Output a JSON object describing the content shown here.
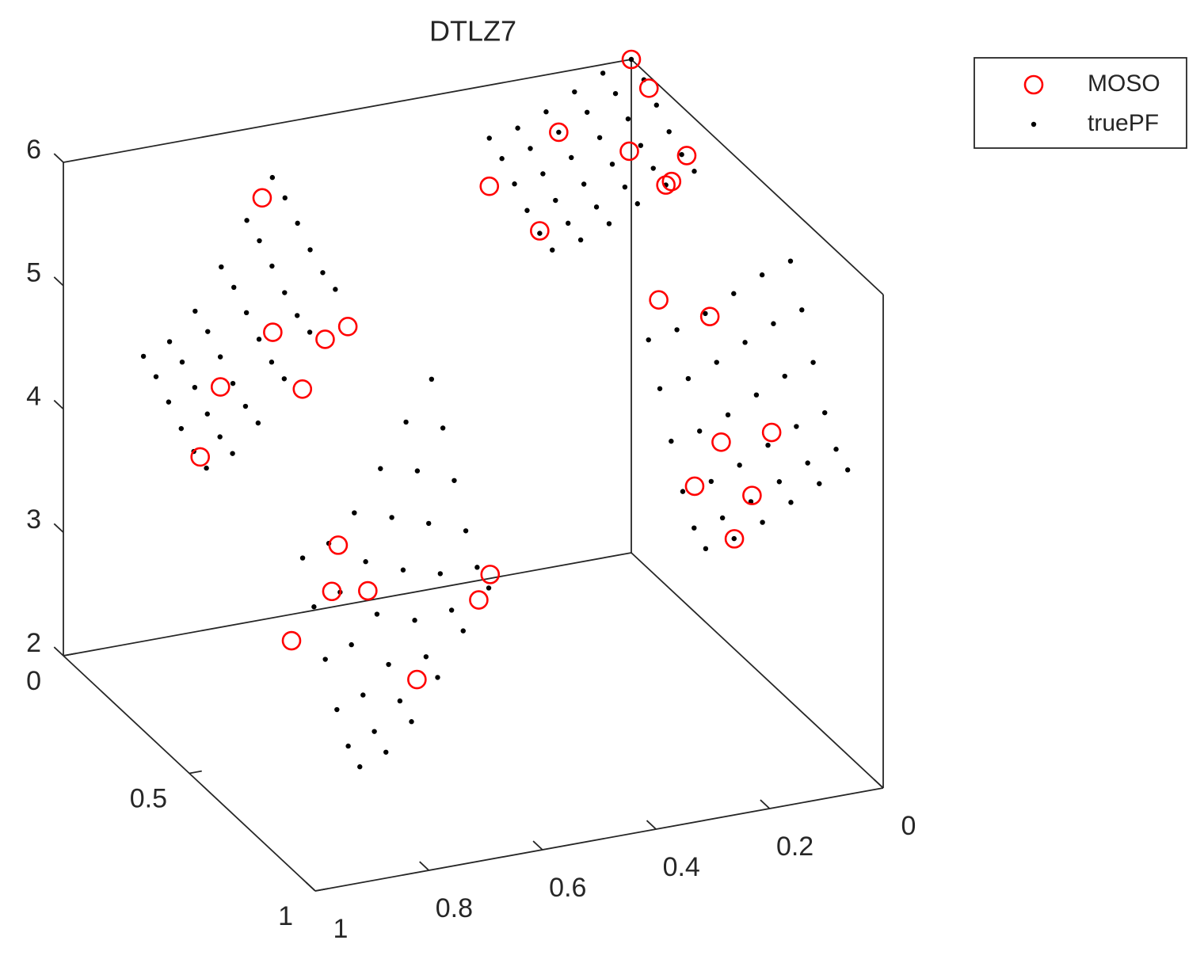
{
  "chart_data": {
    "type": "scatter3d",
    "title": "DTLZ7",
    "xlim": [
      0,
      1
    ],
    "ylim": [
      0,
      1
    ],
    "zlim": [
      2,
      6
    ],
    "xticks": [
      0,
      0.2,
      0.4,
      0.6,
      0.8,
      1
    ],
    "yticks": [
      0,
      0.5,
      1
    ],
    "zticks": [
      2,
      3,
      4,
      5,
      6
    ],
    "legend": "northeastoutside",
    "series": [
      {
        "name": "MOSO",
        "color": "#ff0000",
        "marker": "circle",
        "x": [
          0,
          0,
          0.15,
          0.07,
          0,
          0.05,
          0.04,
          0.25,
          0.25,
          0.65,
          0.72,
          0.79,
          0.87,
          0.65,
          0.61,
          0.69,
          0.24,
          0.15,
          0.09,
          0.17,
          0.23,
          0.16,
          0.2,
          0.8,
          0.82,
          0.77,
          0.63,
          0.65,
          0.86,
          0.75
        ],
        "y": [
          0,
          0.07,
          0.05,
          0.15,
          0.22,
          0.25,
          0.25,
          0,
          0.2,
          0,
          0.2,
          0.15,
          0.25,
          0.25,
          0.25,
          0.25,
          0.65,
          0.65,
          0.76,
          0.74,
          0.77,
          0.84,
          0.86,
          0.64,
          0.66,
          0.69,
          0.86,
          0.86,
          0.59,
          0.84
        ],
        "z": [
          6,
          5.9,
          5.63,
          5.6,
          5.64,
          5.5,
          5.52,
          5.18,
          5.2,
          5.42,
          4.77,
          4.29,
          3.98,
          4.75,
          4.82,
          4.38,
          5.49,
          5.28,
          4.5,
          4.45,
          4.2,
          4.2,
          3.92,
          3.95,
          3.63,
          3.65,
          3.99,
          3.8,
          3.13,
          3.2
        ]
      },
      {
        "name": "truePF",
        "color": "#000000",
        "marker": "dot",
        "grid_x": [
          0,
          0.05,
          0.1,
          0.15,
          0.2,
          0.25,
          0.632,
          0.677,
          0.722,
          0.768,
          0.813,
          0.859
        ],
        "grid_y": [
          0,
          0.05,
          0.1,
          0.15,
          0.2,
          0.25,
          0.632,
          0.677,
          0.722,
          0.768,
          0.813,
          0.859
        ],
        "z": [
          [
            6,
            5.93,
            5.82,
            5.7,
            5.61,
            5.57,
            5.57,
            5.26,
            4.92,
            4.6,
            4.39,
            4.31
          ],
          [
            5.93,
            5.86,
            5.75,
            5.63,
            5.54,
            5.5,
            5.5,
            5.19,
            4.85,
            4.53,
            4.32,
            4.24
          ],
          [
            5.82,
            5.75,
            5.64,
            5.52,
            5.43,
            5.39,
            5.39,
            5.08,
            4.74,
            4.42,
            4.21,
            4.13
          ],
          [
            5.7,
            5.63,
            5.52,
            5.4,
            5.31,
            5.27,
            5.27,
            4.96,
            4.62,
            4.3,
            4.09,
            4.01
          ],
          [
            5.61,
            5.54,
            5.43,
            5.31,
            5.22,
            5.18,
            5.18,
            4.87,
            4.53,
            4.21,
            4.0,
            3.92
          ],
          [
            5.57,
            5.5,
            5.39,
            5.27,
            5.18,
            5.14,
            5.14,
            4.83,
            4.49,
            4.17,
            3.96,
            3.88
          ],
          [
            5.57,
            5.5,
            5.39,
            5.27,
            5.18,
            5.14,
            5.14,
            4.83,
            4.49,
            4.17,
            3.96,
            3.88
          ],
          [
            5.26,
            5.19,
            5.08,
            4.96,
            4.87,
            4.83,
            4.83,
            4.52,
            4.18,
            3.86,
            3.65,
            3.57
          ],
          [
            4.92,
            4.85,
            4.74,
            4.62,
            4.53,
            4.49,
            4.49,
            4.18,
            3.84,
            3.52,
            3.31,
            3.23
          ],
          [
            4.6,
            4.53,
            4.42,
            4.3,
            4.21,
            4.17,
            4.17,
            3.86,
            3.52,
            3.2,
            2.99,
            2.91
          ],
          [
            4.39,
            4.32,
            4.21,
            4.09,
            4.0,
            3.96,
            3.96,
            3.65,
            3.31,
            2.99,
            2.78,
            2.7
          ],
          [
            4.31,
            4.24,
            4.13,
            4.01,
            3.92,
            3.88,
            3.88,
            3.57,
            3.23,
            2.91,
            2.7,
            2.62
          ]
        ]
      }
    ]
  }
}
